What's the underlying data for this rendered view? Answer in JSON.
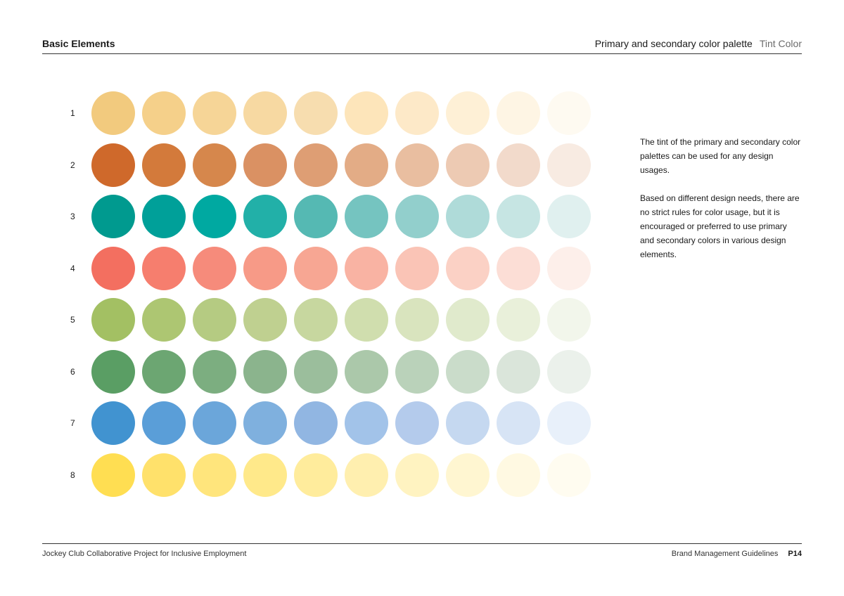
{
  "header": {
    "left_title": "Basic Elements",
    "right_title": "Primary and secondary color palette",
    "right_subtitle": "Tint Color"
  },
  "palette": {
    "rows": [
      {
        "label": "1",
        "colors": [
          "#F2CA7E",
          "#F5D08A",
          "#F6D597",
          "#F7D9A2",
          "#F7DDAF",
          "#FDE5BA",
          "#FDE9C8",
          "#FEF0D6",
          "#FEF5E4",
          "#FEFAF1"
        ]
      },
      {
        "label": "2",
        "colors": [
          "#CF692B",
          "#D37A3B",
          "#D6874C",
          "#DA9163",
          "#DE9E74",
          "#E3AC86",
          "#E9BEA0",
          "#EDCAB3",
          "#F2DACB",
          "#F8EBE2"
        ]
      },
      {
        "label": "3",
        "colors": [
          "#009A8F",
          "#00A099",
          "#00A9A1",
          "#22B0A8",
          "#55B9B3",
          "#75C4C0",
          "#92CFCC",
          "#AFDBD9",
          "#C6E5E3",
          "#E0F0EF"
        ]
      },
      {
        "label": "4",
        "colors": [
          "#F36F60",
          "#F67E6E",
          "#F68B7B",
          "#F79A87",
          "#F7A693",
          "#F9B3A3",
          "#FAC4B6",
          "#FBD1C5",
          "#FCDED6",
          "#FDEFEA"
        ]
      },
      {
        "label": "5",
        "colors": [
          "#A3C063",
          "#ADC672",
          "#B5CB82",
          "#BFD090",
          "#C7D79F",
          "#D0DEAE",
          "#D9E4BE",
          "#E0EACC",
          "#E9F0DA",
          "#F2F6EB"
        ]
      },
      {
        "label": "6",
        "colors": [
          "#5A9E64",
          "#6CA672",
          "#7CAE80",
          "#8BB48D",
          "#9BBE9C",
          "#ABC8AA",
          "#BAD2BA",
          "#CADCCA",
          "#DAE5DA",
          "#EBF1EB"
        ]
      },
      {
        "label": "7",
        "colors": [
          "#4193D0",
          "#5A9ED8",
          "#6BA6DA",
          "#7FB0DE",
          "#91B6E2",
          "#A2C3E9",
          "#B4CBEC",
          "#C5D8F0",
          "#D7E4F5",
          "#E8F0FA"
        ]
      },
      {
        "label": "8",
        "colors": [
          "#FFDE52",
          "#FFE16B",
          "#FFE57C",
          "#FFE98A",
          "#FFEC9C",
          "#FFEFAF",
          "#FFF3C1",
          "#FFF6D1",
          "#FFF9E2",
          "#FFFCF0"
        ]
      }
    ]
  },
  "description": {
    "paragraph_1": "The tint of the primary and secondary color palettes can be used for any design usages.",
    "paragraph_2": "Based on different design needs, there are no strict rules for color usage, but it is encouraged or preferred to use primary and secondary colors in various design elements."
  },
  "footer": {
    "left_text": "Jockey Club Collaborative Project for Inclusive Employment",
    "right_text": "Brand Management Guidelines",
    "page_number": "P14"
  }
}
